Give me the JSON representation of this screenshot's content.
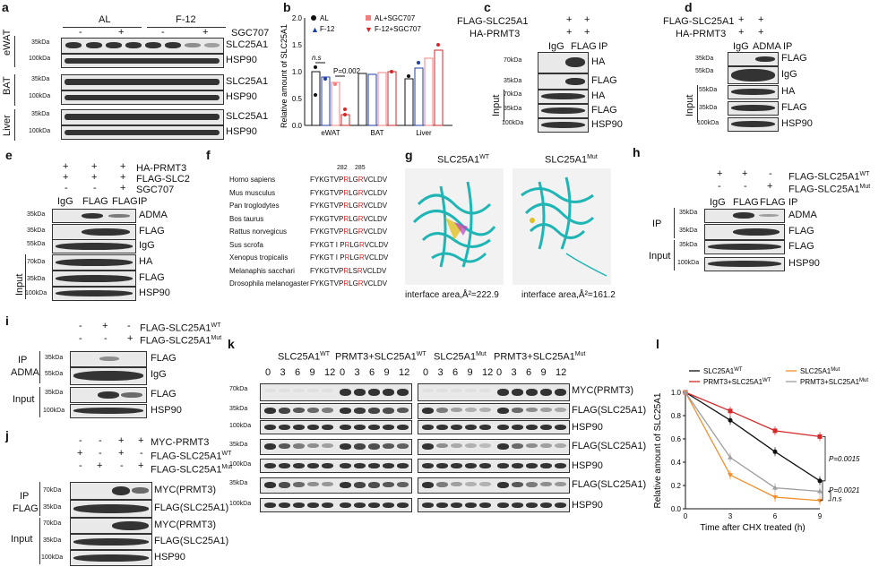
{
  "panels": {
    "a": "a",
    "b": "b",
    "c": "c",
    "d": "d",
    "e": "e",
    "f": "f",
    "g": "g",
    "h": "h",
    "i": "i",
    "j": "j",
    "k": "k",
    "l": "l"
  },
  "a": {
    "group1": "AL",
    "group2": "F-12",
    "treat": "SGC707",
    "minus": "-",
    "plus": "+",
    "tissues": [
      "eWAT",
      "BAT",
      "Liver"
    ],
    "bands": [
      "SLC25A1",
      "HSP90"
    ],
    "mw35": "35kDa",
    "mw100": "100kDa"
  },
  "b": {
    "ylabel": "Relative amount of SLC25A1",
    "legend": [
      "AL",
      "F-12",
      "AL+SGC707",
      "F-12+SGC707"
    ],
    "ns": "n.s",
    "p": "P=0.002",
    "xcats": [
      "eWAT",
      "BAT",
      "Liver"
    ],
    "yticks": [
      "0.0",
      "0.5",
      "1.0",
      "1.5",
      "2.0"
    ]
  },
  "c": {
    "row1": "FLAG-SLC25A1",
    "row2": "HA-PRMT3",
    "plus": "+",
    "lanes": [
      "IgG",
      "FLAG"
    ],
    "ip": "IP",
    "input": "Input",
    "bands": [
      "HA",
      "FLAG",
      "HA",
      "FLAG",
      "HSP90"
    ],
    "mw": [
      "70kDa",
      "35kDa",
      "70kDa",
      "35kDa",
      "100kDa"
    ]
  },
  "d": {
    "row1": "FLAG-SLC25A1",
    "row2": "HA-PRMT3",
    "plus": "+",
    "lanes": [
      "IgG",
      "ADMA"
    ],
    "ip": "IP",
    "input": "Input",
    "bands": [
      "FLAG",
      "IgG",
      "HA",
      "FLAG",
      "HSP90"
    ],
    "mw": [
      "35kDa",
      "55kDa",
      "55kDa",
      "35kDa",
      "100kDa"
    ]
  },
  "e": {
    "row1": "HA-PRMT3",
    "row2": "FLAG-SLC2",
    "row3": "SGC707",
    "plus": "+",
    "minus": "-",
    "lanes": [
      "IgG",
      "FLAG",
      "FLAG"
    ],
    "ip": "IP",
    "input": "Input",
    "bands": [
      "ADMA",
      "FLAG",
      "IgG",
      "HA",
      "FLAG",
      "HSP90"
    ],
    "mw": [
      "35kDa",
      "35kDa",
      "55kDa",
      "70kDa",
      "35kDa",
      "100kDa"
    ]
  },
  "f": {
    "pos1": "282",
    "pos2": "285",
    "species": [
      "Homo sapiens",
      "Mus musculus",
      "Pan troglodytes",
      "Bos taurus",
      "Rattus norvegicus",
      "Sus scrofa",
      "Xenopus tropicalis",
      "Melanaphis sacchari",
      "Drosophila melanogaster"
    ],
    "seq": [
      [
        "FYKGTVP",
        "R",
        "LG",
        "R",
        "VCLDV"
      ],
      [
        "FYKGTVP",
        "R",
        "LG",
        "R",
        "VCLDV"
      ],
      [
        "FYKGTVP",
        "R",
        "LG",
        "R",
        "VCLDV"
      ],
      [
        "FYKGTVP",
        "R",
        "LG",
        "R",
        "VCLDV"
      ],
      [
        "FYKGTVP",
        "R",
        "LG",
        "R",
        "VCLDV"
      ],
      [
        "FYKGT I P",
        "R",
        "LG",
        "R",
        "VCLDV"
      ],
      [
        "FYKGT I P",
        "R",
        "LG",
        "R",
        "VCLDV"
      ],
      [
        "FYKGTVP",
        "R",
        "LS",
        "R",
        "VCLDV"
      ],
      [
        "FYKGTVP",
        "R",
        "LG",
        "R",
        "VCLDV"
      ]
    ]
  },
  "g": {
    "wt": "SLC25A1",
    "wtsup": "WT",
    "mut": "SLC25A1",
    "mutsup": "Mut",
    "area_wt": "interface area,Å²=222.9",
    "area_mut": "interface area,Å²=161.2"
  },
  "h": {
    "row1": "FLAG-SLC25A1",
    "row1sup": "WT",
    "row2": "FLAG-SLC25A1",
    "row2sup": "Mut",
    "plus": "+",
    "minus": "-",
    "lanes": [
      "IgG",
      "FLAG",
      "FLAG"
    ],
    "ip": "IP",
    "input": "Input",
    "bands": [
      "ADMA",
      "FLAG",
      "FLAG",
      "HSP90"
    ],
    "mw": [
      "35kDa",
      "35kDa",
      "35kDa",
      "100kDa"
    ]
  },
  "i": {
    "row1": "FLAG-SLC25A1",
    "row1sup": "WT",
    "row2": "FLAG-SLC25A1",
    "row2sup": "Mut",
    "plus": "+",
    "minus": "-",
    "ip": "IP",
    "ipsub": "ADMA",
    "input": "Input",
    "bands": [
      "FLAG",
      "IgG",
      "FLAG",
      "HSP90"
    ],
    "mw": [
      "35kDa",
      "55kDa",
      "35kDa",
      "100kDa"
    ]
  },
  "j": {
    "row1": "MYC-PRMT3",
    "row2": "FLAG-SLC25A1",
    "row2sup": "WT",
    "row3": "FLAG-SLC25A1",
    "row3sup": "Mut",
    "plus": "+",
    "minus": "-",
    "ip": "IP",
    "ipsub": "FLAG",
    "input": "Input",
    "bands": [
      "MYC(PRMT3)",
      "FLAG(SLC25A1)",
      "MYC(PRMT3)",
      "FLAG(SLC25A1)",
      "HSP90"
    ],
    "mw": [
      "70kDa",
      "35kDa",
      "70kDa",
      "35kDa",
      "100kDa"
    ]
  },
  "k": {
    "g1": "SLC25A1",
    "g1sup": "WT",
    "g2": "PRMT3+SLC25A1",
    "g2sup": "WT",
    "g3": "SLC25A1",
    "g3sup": "Mut",
    "g4": "PRMT3+SLC25A1",
    "g4sup": "Mut",
    "times": [
      "0",
      "3",
      "6",
      "9",
      "12"
    ],
    "bands": [
      "MYC(PRMT3)",
      "FLAG(SLC25A1)",
      "HSP90",
      "FLAG(SLC25A1)",
      "HSP90",
      "FLAG(SLC25A1)",
      "HSP90"
    ],
    "mw": [
      "70kDa",
      "35kDa",
      "100kDa",
      "35kDa",
      "100kDa",
      "35kDa",
      "100kDa"
    ]
  },
  "chart_data": {
    "type": "line",
    "xlabel": "Time after CHX treated (h)",
    "ylabel": "Relative amount of SLC25A1",
    "x": [
      0,
      3,
      6,
      9
    ],
    "xlim": [
      0,
      9
    ],
    "ylim": [
      0,
      1.0
    ],
    "xticks": [
      "0",
      "3",
      "6",
      "9"
    ],
    "yticks": [
      "0.0",
      "0.2",
      "0.4",
      "0.6",
      "0.8",
      "1.0"
    ],
    "series": [
      {
        "name": "SLC25A1",
        "sup": "WT",
        "color": "#111111",
        "values": [
          1.0,
          0.76,
          0.49,
          0.24
        ]
      },
      {
        "name": "PRMT3+SLC25A1",
        "sup": "WT",
        "color": "#d62728",
        "values": [
          1.0,
          0.84,
          0.67,
          0.62
        ]
      },
      {
        "name": "SLC25A1",
        "sup": "Mut",
        "color": "#f28e2b",
        "values": [
          1.0,
          0.29,
          0.1,
          0.07
        ]
      },
      {
        "name": "PRMT3+SLC25A1",
        "sup": "Mut",
        "color": "#9e9e9e",
        "values": [
          1.0,
          0.44,
          0.18,
          0.15
        ]
      }
    ],
    "annotations": [
      "P=0.0015",
      "P=0.0021",
      "n.s"
    ]
  }
}
